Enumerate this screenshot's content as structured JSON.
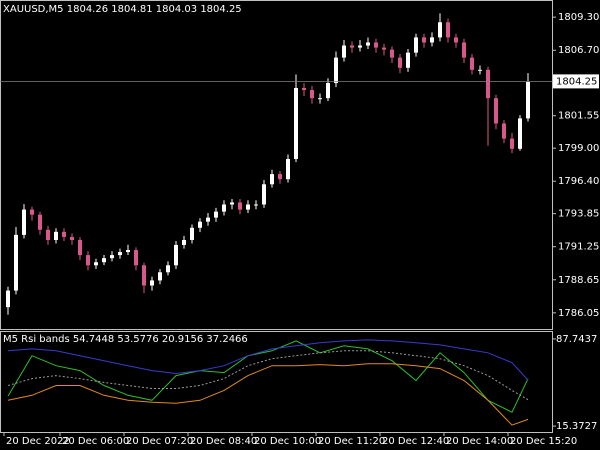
{
  "chart_data": [
    {
      "type": "candlestick",
      "title": "XAUUSD,M5  1804.26 1804.81 1804.03 1804.25",
      "bull_color": "#ffffff",
      "bear_color": "#d8588c",
      "open": [
        1786.5,
        1787.8,
        1792.18,
        1794.17,
        1793.77,
        1792.58,
        1791.78,
        1792.42,
        1792.02,
        1791.78,
        1790.59,
        1789.79,
        1790.03,
        1790.35,
        1790.59,
        1790.83,
        1790.99,
        1789.79,
        1788.2,
        1788.6,
        1789.24,
        1789.79,
        1791.39,
        1791.78,
        1792.74,
        1793.22,
        1793.54,
        1794.01,
        1794.57,
        1794.73,
        1794.17,
        1794.57,
        1794.57,
        1796.16,
        1796.96,
        1796.56,
        1798.15,
        1803.73,
        1803.57,
        1802.93,
        1802.93,
        1804.12,
        1806.12,
        1807.07,
        1806.91,
        1807.07,
        1807.31,
        1806.91,
        1806.75,
        1806.12,
        1805.32,
        1806.51,
        1807.71,
        1807.31,
        1807.71,
        1808.9,
        1807.71,
        1807.31,
        1806.12,
        1805.16,
        1805.16,
        1802.93,
        1800.94,
        1799.75,
        1798.95,
        1801.34
      ],
      "high": [
        1788.1,
        1792.8,
        1794.6,
        1794.4,
        1794.0,
        1792.9,
        1792.7,
        1792.7,
        1792.3,
        1792.0,
        1790.9,
        1790.3,
        1790.6,
        1790.9,
        1791.1,
        1791.4,
        1791.2,
        1790.0,
        1788.9,
        1789.5,
        1790.1,
        1791.7,
        1792.1,
        1793.0,
        1793.5,
        1793.9,
        1794.3,
        1794.9,
        1795.0,
        1795.0,
        1794.9,
        1794.9,
        1796.5,
        1797.3,
        1797.2,
        1798.5,
        1804.8,
        1804.1,
        1803.9,
        1803.3,
        1804.5,
        1806.6,
        1807.5,
        1807.4,
        1807.5,
        1807.7,
        1807.6,
        1807.2,
        1807.0,
        1806.4,
        1806.8,
        1808.0,
        1808.0,
        1808.1,
        1809.6,
        1809.2,
        1808.0,
        1807.6,
        1806.4,
        1805.5,
        1805.4,
        1803.2,
        1801.2,
        1800.2,
        1801.6,
        1804.9
      ],
      "low": [
        1785.9,
        1787.5,
        1791.9,
        1793.3,
        1792.2,
        1791.4,
        1791.5,
        1791.7,
        1791.4,
        1790.2,
        1789.4,
        1789.5,
        1789.8,
        1790.1,
        1790.3,
        1790.6,
        1789.4,
        1787.6,
        1787.8,
        1788.3,
        1789.0,
        1789.5,
        1791.1,
        1791.5,
        1792.4,
        1792.9,
        1793.2,
        1793.7,
        1794.2,
        1793.8,
        1793.9,
        1794.2,
        1794.3,
        1795.9,
        1796.2,
        1796.3,
        1797.9,
        1803.1,
        1802.5,
        1802.5,
        1802.7,
        1803.8,
        1805.8,
        1806.5,
        1806.6,
        1806.8,
        1806.5,
        1806.3,
        1805.7,
        1804.9,
        1805.0,
        1806.2,
        1806.9,
        1807.0,
        1807.4,
        1807.3,
        1806.9,
        1805.7,
        1804.8,
        1804.8,
        1799.2,
        1800.5,
        1799.4,
        1798.6,
        1798.8,
        1801.1
      ],
      "close": [
        1787.8,
        1792.18,
        1794.17,
        1793.77,
        1792.58,
        1791.78,
        1792.42,
        1792.02,
        1791.78,
        1790.59,
        1789.79,
        1790.03,
        1790.35,
        1790.59,
        1790.83,
        1790.99,
        1789.79,
        1788.2,
        1788.6,
        1789.24,
        1789.79,
        1791.39,
        1791.78,
        1792.74,
        1793.22,
        1793.54,
        1794.01,
        1794.57,
        1794.73,
        1794.17,
        1794.57,
        1794.57,
        1796.16,
        1796.96,
        1796.56,
        1798.15,
        1803.73,
        1803.57,
        1802.93,
        1802.93,
        1804.12,
        1806.12,
        1807.07,
        1806.91,
        1807.07,
        1807.31,
        1806.91,
        1806.75,
        1806.12,
        1805.32,
        1806.51,
        1807.71,
        1807.31,
        1807.71,
        1808.9,
        1807.71,
        1807.31,
        1806.12,
        1805.16,
        1805.16,
        1802.93,
        1800.94,
        1799.75,
        1798.95,
        1801.34,
        1804.2
      ],
      "current_price": 1804.25,
      "xlim": [
        -1,
        68
      ],
      "ylim": [
        1784.78,
        1810.65
      ],
      "yticks": [
        {
          "value": 1809.3,
          "label": "1809.30"
        },
        {
          "value": 1806.7,
          "label": "1806.70"
        },
        1801.55,
        {
          "value": 1799.0,
          "label": "1799.00"
        },
        {
          "value": 1796.4,
          "label": "1796.40"
        },
        1793.85,
        1791.25,
        1788.65,
        1786.05
      ],
      "xticks": [
        {
          "value": 0,
          "label": "20 Dec 2022"
        },
        {
          "value": 7,
          "label": "20 Dec 06:00"
        },
        {
          "value": 15,
          "label": "20 Dec 07:20"
        },
        {
          "value": 23,
          "label": "20 Dec 08:40"
        },
        {
          "value": 31,
          "label": "20 Dec 10:00"
        },
        {
          "value": 39,
          "label": "20 Dec 11:20"
        },
        {
          "value": 47,
          "label": "20 Dec 12:40"
        },
        {
          "value": 55,
          "label": "20 Dec 14:00"
        },
        {
          "value": 63,
          "label": "20 Dec 15:20"
        }
      ]
    },
    {
      "type": "line",
      "title": "M5 Rsi bands 54.7448 53.5776 20.9156 37.2466",
      "x": [
        0,
        3,
        6,
        9,
        12,
        15,
        18,
        21,
        24,
        27,
        30,
        33,
        36,
        39,
        42,
        45,
        48,
        51,
        54,
        57,
        60,
        63,
        65
      ],
      "xlim": [
        -1,
        68
      ],
      "ylim": [
        10.44,
        93.5
      ],
      "yticks": [
        87.7437,
        15.3727
      ],
      "series": [
        {
          "color": "#2fbf2f",
          "dash": false,
          "values": [
            40.3,
            73.8,
            65.5,
            61.4,
            49.1,
            40.9,
            36.8,
            57.3,
            61.4,
            59.8,
            73.8,
            77.9,
            86.1,
            76.2,
            82.0,
            79.5,
            69.7,
            53.2,
            76.2,
            59.8,
            36.8,
            26.9,
            54.7448
          ]
        },
        {
          "color": "#3a3acf",
          "dash": false,
          "values": [
            77.9,
            79.5,
            77.9,
            73.8,
            69.7,
            65.5,
            61.4,
            59.0,
            61.4,
            65.5,
            73.8,
            79.5,
            82.0,
            84.5,
            86.1,
            86.9,
            86.1,
            84.5,
            82.8,
            79.5,
            76.2,
            68.0,
            53.5776
          ]
        },
        {
          "color": "#e08a1e",
          "dash": false,
          "values": [
            36.8,
            40.9,
            49.1,
            49.1,
            40.9,
            36.8,
            35.1,
            34.3,
            36.8,
            45.0,
            57.3,
            65.5,
            65.5,
            66.4,
            65.5,
            67.2,
            67.2,
            65.5,
            63.1,
            53.2,
            36.8,
            16.2,
            20.9156
          ]
        },
        {
          "color": "#9a9a9a",
          "dash": true,
          "values": [
            49.1,
            54.8,
            57.3,
            54.8,
            51.6,
            49.1,
            46.6,
            46.6,
            49.1,
            54.8,
            65.5,
            71.3,
            73.8,
            76.2,
            77.9,
            77.9,
            76.2,
            73.8,
            71.3,
            65.5,
            57.3,
            45.0,
            37.2466
          ]
        }
      ]
    }
  ]
}
